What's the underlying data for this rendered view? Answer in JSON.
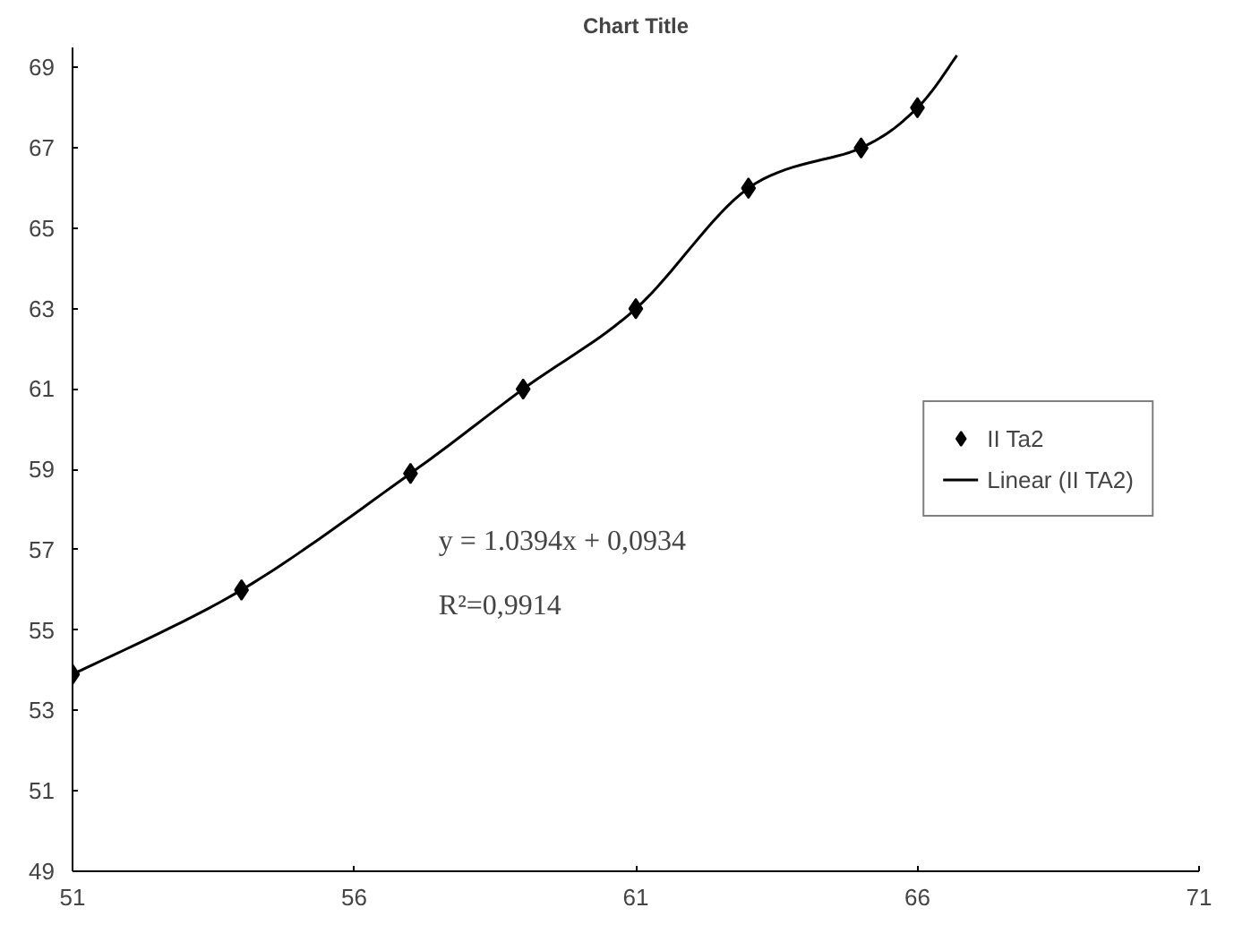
{
  "chart_data": {
    "type": "scatter",
    "title": "Chart Title",
    "xlim": [
      51,
      71
    ],
    "xticks": [
      51,
      56,
      61,
      66,
      71
    ],
    "ylim": [
      49,
      69.5
    ],
    "yticks": [
      49,
      51,
      53,
      55,
      57,
      59,
      61,
      63,
      65,
      67,
      69
    ],
    "grid": false,
    "legend": "right",
    "series": [
      {
        "name": "II Ta2",
        "color": "#000000",
        "marker": "diamond",
        "x": [
          51,
          54,
          57,
          59,
          61,
          63,
          65,
          66
        ],
        "values": [
          53.9,
          56,
          58.9,
          61,
          63,
          66,
          67,
          68
        ]
      },
      {
        "name": "Linear (II TA2)",
        "type": "line",
        "color": "#000000",
        "line_style": "solid",
        "x": [
          51,
          54,
          57,
          59,
          61,
          63,
          65,
          66,
          66.7
        ],
        "values": [
          53.9,
          56,
          58.9,
          61,
          63,
          66,
          67,
          68,
          69.3
        ]
      }
    ],
    "annotations": [
      "y = 1.0394x + 0,0934",
      "R²=0,9914"
    ]
  }
}
